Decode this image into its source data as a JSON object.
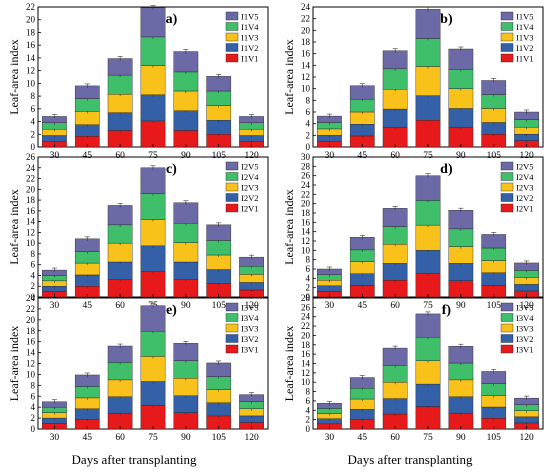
{
  "figure": {
    "x_title": "Days after transplanting",
    "colors": {
      "V1": "#e8191a",
      "V2": "#3460a8",
      "V3": "#f9c21b",
      "V4": "#3fbf6a",
      "V5": "#6b69a6"
    }
  },
  "chart_data": [
    {
      "type": "bar",
      "stacked": true,
      "panel_label": "a)",
      "ylabel": "Leaf-area index",
      "ylim": [
        0,
        22
      ],
      "yticks": [
        0,
        2,
        4,
        6,
        8,
        10,
        12,
        14,
        16,
        18,
        20,
        22
      ],
      "categories": [
        "30",
        "45",
        "60",
        "75",
        "90",
        "105",
        "120"
      ],
      "legend_position": "top-right",
      "series": [
        {
          "name": "I1V1",
          "values": [
            0.9,
            1.7,
            2.6,
            4.1,
            2.6,
            2.0,
            0.9
          ]
        },
        {
          "name": "I1V2",
          "values": [
            0.9,
            1.8,
            2.8,
            4.1,
            3.1,
            2.2,
            0.9
          ]
        },
        {
          "name": "I1V3",
          "values": [
            1.0,
            2.1,
            2.9,
            4.6,
            3.1,
            2.3,
            1.0
          ]
        },
        {
          "name": "I1V4",
          "values": [
            1.0,
            2.0,
            3.0,
            4.5,
            3.0,
            2.3,
            1.0
          ]
        },
        {
          "name": "I1V5",
          "values": [
            1.0,
            2.0,
            2.6,
            4.6,
            3.2,
            2.3,
            1.0
          ]
        }
      ]
    },
    {
      "type": "bar",
      "stacked": true,
      "panel_label": "b)",
      "ylabel": "Leaf-area index",
      "ylim": [
        0,
        24
      ],
      "yticks": [
        0,
        2,
        4,
        6,
        8,
        10,
        12,
        14,
        16,
        18,
        20,
        22,
        24
      ],
      "categories": [
        "30",
        "45",
        "60",
        "75",
        "90",
        "105",
        "120"
      ],
      "legend_position": "top-right",
      "series": [
        {
          "name": "I1V1",
          "values": [
            1.0,
            1.9,
            3.4,
            4.6,
            3.4,
            2.2,
            1.1
          ]
        },
        {
          "name": "I1V2",
          "values": [
            1.0,
            2.0,
            3.1,
            4.2,
            3.2,
            2.0,
            1.1
          ]
        },
        {
          "name": "I1V3",
          "values": [
            1.1,
            2.1,
            3.4,
            5.0,
            3.4,
            2.4,
            1.2
          ]
        },
        {
          "name": "I1V4",
          "values": [
            1.1,
            2.2,
            3.5,
            4.8,
            3.3,
            2.4,
            1.3
          ]
        },
        {
          "name": "I1V5",
          "values": [
            1.1,
            2.3,
            3.1,
            5.0,
            3.5,
            2.4,
            1.3
          ]
        }
      ]
    },
    {
      "type": "bar",
      "stacked": true,
      "panel_label": "c)",
      "ylabel": "Leaf-area index",
      "ylim": [
        0,
        26
      ],
      "yticks": [
        0,
        2,
        4,
        6,
        8,
        10,
        12,
        14,
        16,
        18,
        20,
        22,
        24,
        26
      ],
      "categories": [
        "30",
        "45",
        "60",
        "75",
        "90",
        "105",
        "120"
      ],
      "legend_position": "top-right",
      "series": [
        {
          "name": "I2V1",
          "values": [
            1.0,
            2.0,
            3.2,
            4.7,
            3.2,
            2.5,
            1.3
          ]
        },
        {
          "name": "I2V2",
          "values": [
            1.0,
            2.1,
            3.3,
            4.8,
            3.3,
            2.6,
            1.4
          ]
        },
        {
          "name": "I2V3",
          "values": [
            1.0,
            2.2,
            3.5,
            4.9,
            3.6,
            2.7,
            1.5
          ]
        },
        {
          "name": "I2V4",
          "values": [
            1.0,
            2.1,
            3.4,
            4.8,
            3.6,
            2.7,
            1.5
          ]
        },
        {
          "name": "I2V5",
          "values": [
            1.0,
            2.4,
            3.6,
            4.8,
            3.8,
            2.9,
            1.7
          ]
        }
      ]
    },
    {
      "type": "bar",
      "stacked": true,
      "panel_label": "d)",
      "ylabel": "Leaf-area index",
      "ylim": [
        0,
        30
      ],
      "yticks": [
        0,
        2,
        4,
        6,
        8,
        10,
        12,
        14,
        16,
        18,
        20,
        22,
        24,
        26,
        28,
        30
      ],
      "categories": [
        "30",
        "45",
        "60",
        "75",
        "90",
        "105",
        "120"
      ],
      "legend_position": "top-right",
      "series": [
        {
          "name": "I2V1",
          "values": [
            1.2,
            2.5,
            3.6,
            5.0,
            3.5,
            2.5,
            1.3
          ]
        },
        {
          "name": "I2V2",
          "values": [
            1.2,
            2.5,
            3.6,
            5.0,
            3.7,
            2.7,
            1.4
          ]
        },
        {
          "name": "I2V3",
          "values": [
            1.2,
            2.6,
            4.1,
            5.4,
            3.6,
            2.6,
            1.5
          ]
        },
        {
          "name": "I2V4",
          "values": [
            1.2,
            2.5,
            3.8,
            5.3,
            3.8,
            2.7,
            1.5
          ]
        },
        {
          "name": "I2V5",
          "values": [
            1.2,
            2.7,
            3.9,
            5.3,
            4.0,
            2.9,
            1.6
          ]
        }
      ]
    },
    {
      "type": "bar",
      "stacked": true,
      "panel_label": "e)",
      "ylabel": "Leaf-area index",
      "ylim": [
        0,
        24
      ],
      "yticks": [
        0,
        2,
        4,
        6,
        8,
        10,
        12,
        14,
        16,
        18,
        20,
        22,
        24
      ],
      "categories": [
        "30",
        "45",
        "60",
        "75",
        "90",
        "105",
        "120"
      ],
      "legend_position": "top-right",
      "series": [
        {
          "name": "I3V1",
          "values": [
            1.0,
            1.8,
            2.9,
            4.3,
            3.0,
            2.4,
            1.2
          ]
        },
        {
          "name": "I3V2",
          "values": [
            1.0,
            1.9,
            3.0,
            4.4,
            3.1,
            2.4,
            1.2
          ]
        },
        {
          "name": "I3V3",
          "values": [
            1.0,
            2.0,
            3.1,
            4.6,
            3.2,
            2.4,
            1.3
          ]
        },
        {
          "name": "I3V4",
          "values": [
            1.0,
            2.1,
            3.2,
            4.6,
            3.2,
            2.4,
            1.3
          ]
        },
        {
          "name": "I3V5",
          "values": [
            1.0,
            2.1,
            3.0,
            4.7,
            3.2,
            2.5,
            1.3
          ]
        }
      ]
    },
    {
      "type": "bar",
      "stacked": true,
      "panel_label": "f)",
      "ylabel": "Leaf-area index",
      "ylim": [
        0,
        28
      ],
      "yticks": [
        0,
        2,
        4,
        6,
        8,
        10,
        12,
        14,
        16,
        18,
        20,
        22,
        24,
        26,
        28
      ],
      "categories": [
        "30",
        "45",
        "60",
        "75",
        "90",
        "105",
        "120"
      ],
      "legend_position": "top-right",
      "series": [
        {
          "name": "I3V1",
          "values": [
            1.1,
            2.1,
            3.2,
            4.8,
            3.4,
            2.3,
            1.3
          ]
        },
        {
          "name": "I3V2",
          "values": [
            1.1,
            2.1,
            3.3,
            4.8,
            3.5,
            2.4,
            1.3
          ]
        },
        {
          "name": "I3V3",
          "values": [
            1.1,
            2.2,
            3.5,
            5.0,
            3.6,
            2.4,
            1.3
          ]
        },
        {
          "name": "I3V4",
          "values": [
            1.1,
            2.3,
            3.6,
            5.0,
            3.6,
            2.6,
            1.3
          ]
        },
        {
          "name": "I3V5",
          "values": [
            1.1,
            2.3,
            3.7,
            5.0,
            3.6,
            2.6,
            1.4
          ]
        }
      ]
    }
  ]
}
